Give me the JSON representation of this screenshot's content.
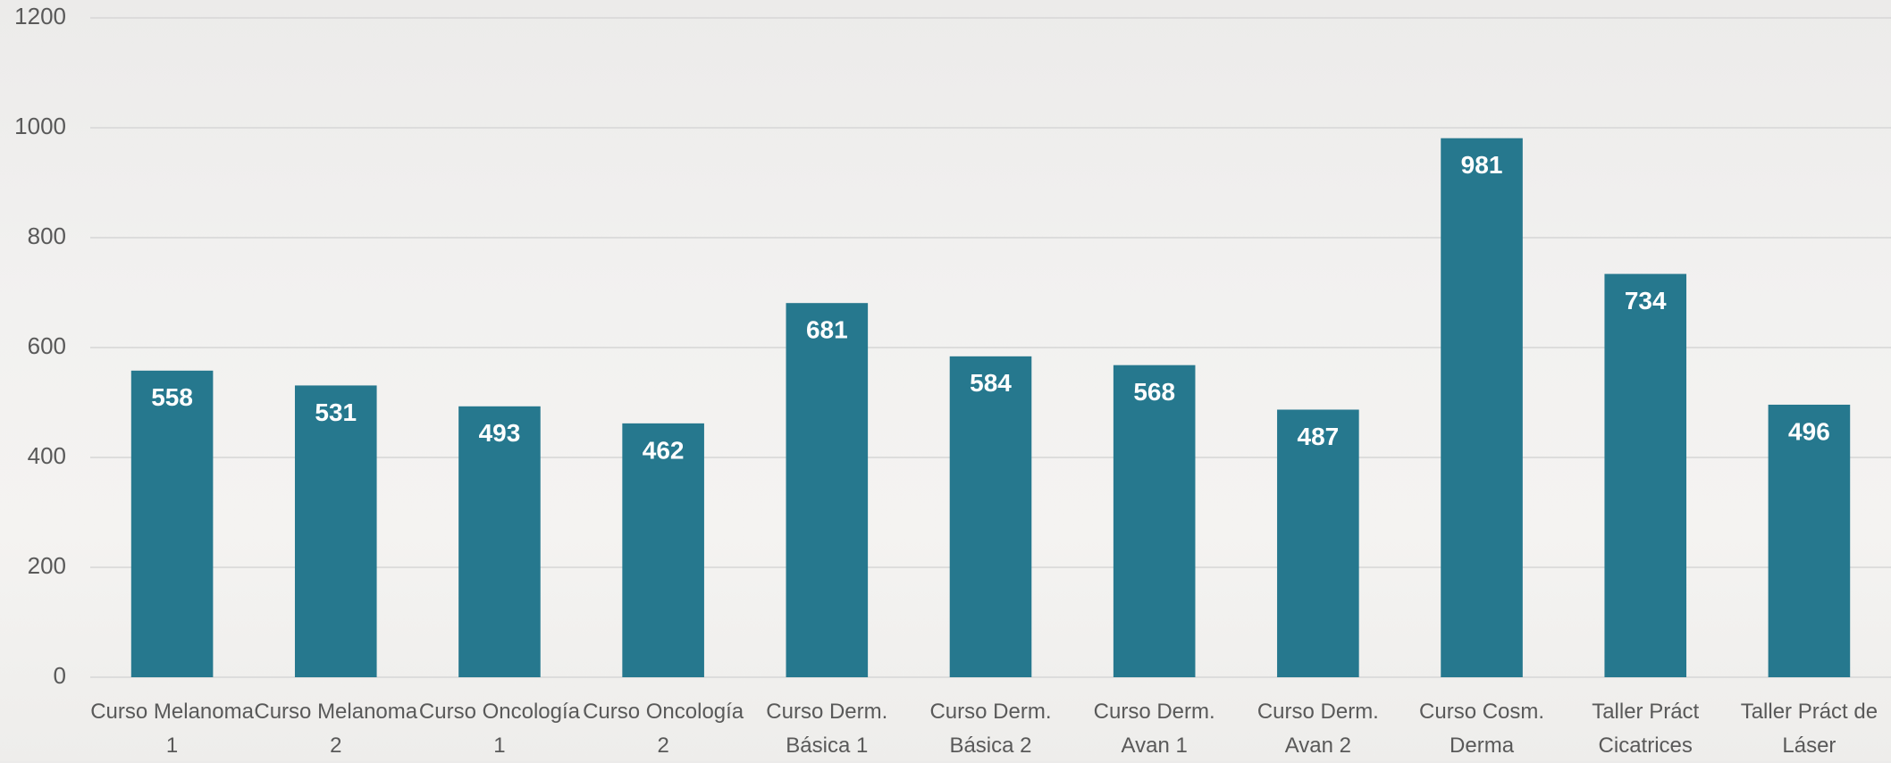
{
  "chart_data": {
    "type": "bar",
    "categories": [
      "Curso Melanoma 1",
      "Curso Melanoma 2",
      "Curso Oncología 1",
      "Curso Oncología 2",
      "Curso Derm. Básica 1",
      "Curso Derm. Básica 2",
      "Curso Derm. Avan 1",
      "Curso Derm. Avan 2",
      "Curso Cosm. Derma",
      "Taller Práct Cicatrices",
      "Taller Práct de Láser"
    ],
    "values": [
      558,
      531,
      493,
      462,
      681,
      584,
      568,
      487,
      981,
      734,
      496
    ],
    "color": "#26788e",
    "ylim": [
      0,
      1200
    ],
    "yticks": [
      0,
      200,
      400,
      600,
      800,
      1000,
      1200
    ],
    "grid": true
  }
}
